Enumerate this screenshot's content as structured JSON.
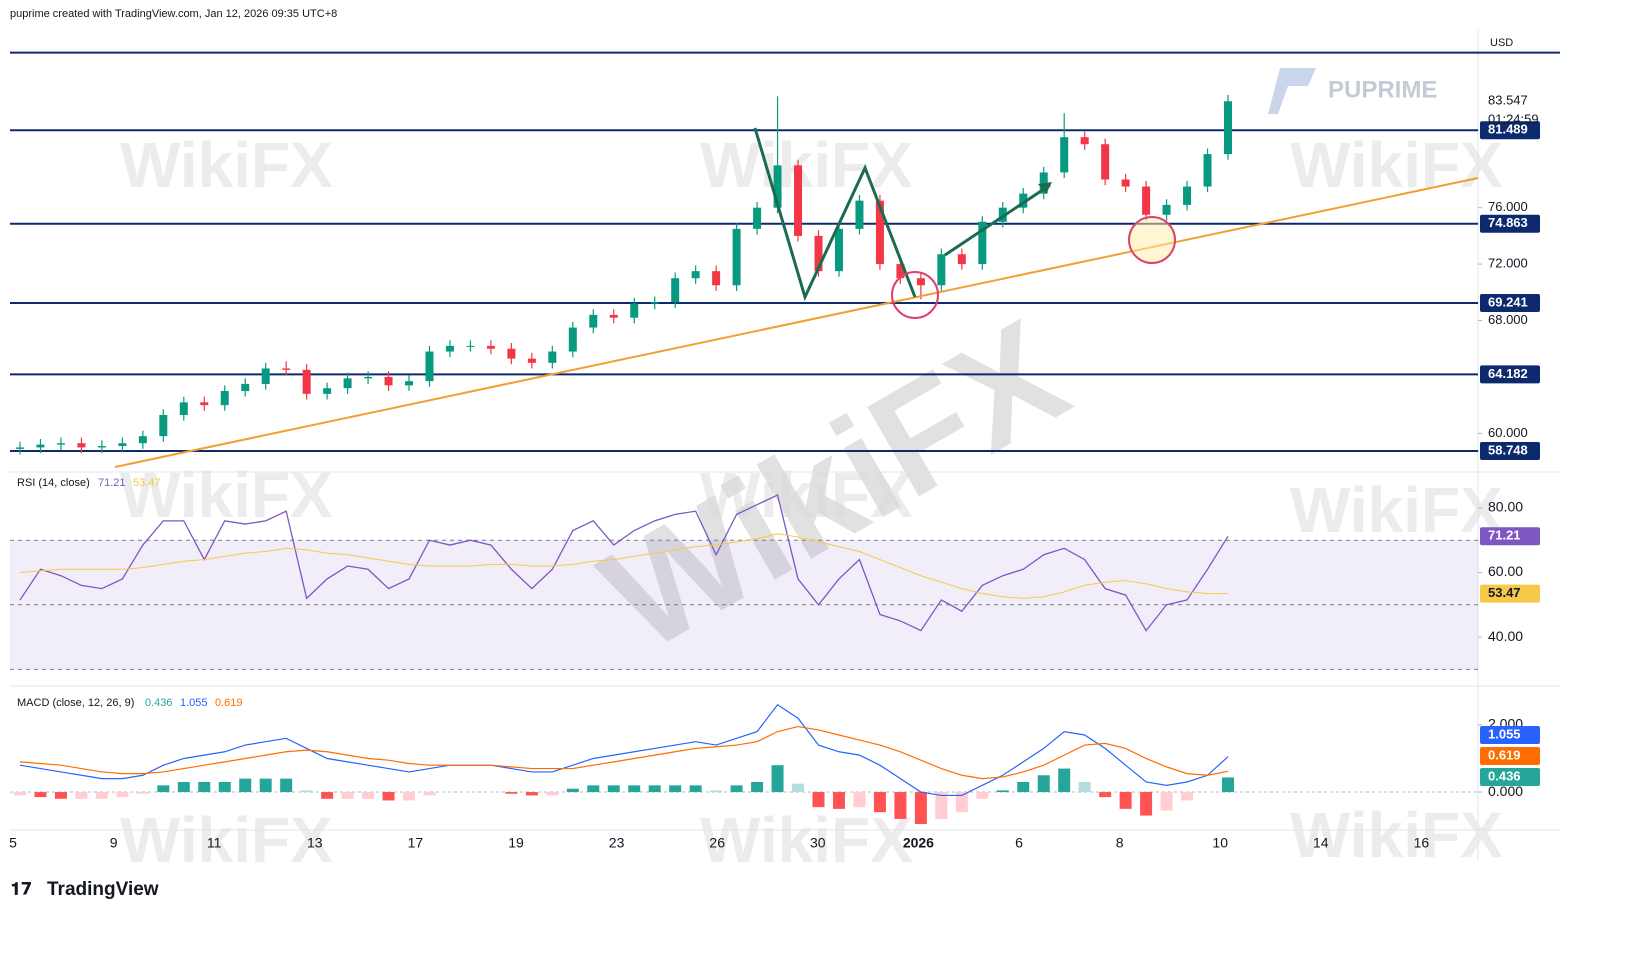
{
  "header": "puprime created with TradingView.com, Jan 12, 2026 09:35 UTC+8",
  "watermark": "WikiFX",
  "brand": "PUPRIME",
  "footer": "TradingView",
  "countdown": "01:24:59",
  "x_axis_labels": [
    "5",
    "9",
    "11",
    "13",
    "17",
    "19",
    "23",
    "26",
    "30",
    "2026",
    "6",
    "8",
    "10",
    "14",
    "16"
  ],
  "chart_data": [
    {
      "type": "candlestick",
      "currency": "USD",
      "up_color": "#089981",
      "down_color": "#f23645",
      "ylim": [
        57.4,
        88.6
      ],
      "yticks": [
        {
          "value": 60,
          "label": "60.000"
        },
        {
          "value": 68,
          "label": "68.000"
        },
        {
          "value": 72,
          "label": "72.000"
        },
        {
          "value": 76,
          "label": "76.000"
        }
      ],
      "levels": [
        81.489,
        74.863,
        69.241,
        64.182,
        58.748
      ],
      "level_color": "#0d2a6e",
      "resistance_line": 87.0,
      "open": [
        58.9,
        59.0,
        59.2,
        59.3,
        59.0,
        59.1,
        59.3,
        59.8,
        61.3,
        62.2,
        62.0,
        63.0,
        63.5,
        64.6,
        64.5,
        62.8,
        63.2,
        63.9,
        64.0,
        63.4,
        63.7,
        65.8,
        66.2,
        66.2,
        66.0,
        65.3,
        65.0,
        65.8,
        67.5,
        68.4,
        68.2,
        69.2,
        69.3,
        71.0,
        71.5,
        70.5,
        74.5,
        76.0,
        79.0,
        74.0,
        71.5,
        74.5,
        76.5,
        72.0,
        71.0,
        70.5,
        72.7,
        72.0,
        75.0,
        76.0,
        77.0,
        78.5,
        81.0,
        80.5,
        78.0,
        77.5,
        75.5,
        76.2,
        77.5,
        79.8
      ],
      "high": [
        59.4,
        59.6,
        59.7,
        59.7,
        59.5,
        59.7,
        60.2,
        61.7,
        62.6,
        62.6,
        63.4,
        63.9,
        65.0,
        65.1,
        64.9,
        63.6,
        64.3,
        64.4,
        64.4,
        64.1,
        66.2,
        66.6,
        66.6,
        66.6,
        66.4,
        65.7,
        66.2,
        67.9,
        68.8,
        68.8,
        69.6,
        69.7,
        71.4,
        71.9,
        71.9,
        74.9,
        76.4,
        83.9,
        79.4,
        74.4,
        74.9,
        76.9,
        76.9,
        72.4,
        71.4,
        73.1,
        73.1,
        75.4,
        76.4,
        77.4,
        78.9,
        82.7,
        81.4,
        80.9,
        78.4,
        77.9,
        76.6,
        77.9,
        80.2,
        84.0
      ],
      "low": [
        58.5,
        58.6,
        58.8,
        58.6,
        58.6,
        58.7,
        58.9,
        59.4,
        60.9,
        61.6,
        61.6,
        62.6,
        63.1,
        64.1,
        62.4,
        62.4,
        62.8,
        63.5,
        63.0,
        63.0,
        63.3,
        65.4,
        65.8,
        65.6,
        64.9,
        64.6,
        64.6,
        65.4,
        67.1,
        67.8,
        67.8,
        68.8,
        68.9,
        70.6,
        70.1,
        70.1,
        74.1,
        75.6,
        73.6,
        71.1,
        71.1,
        74.1,
        71.6,
        70.6,
        69.5,
        70.1,
        71.6,
        71.6,
        74.6,
        75.6,
        76.6,
        78.1,
        80.1,
        77.6,
        77.1,
        75.1,
        75.1,
        75.8,
        77.1,
        79.4
      ],
      "close": [
        59.0,
        59.2,
        59.3,
        59.0,
        59.1,
        59.3,
        59.8,
        61.3,
        62.2,
        62.0,
        63.0,
        63.5,
        64.6,
        64.5,
        62.8,
        63.2,
        63.9,
        64.0,
        63.4,
        63.7,
        65.8,
        66.2,
        66.2,
        66.0,
        65.3,
        65.0,
        65.8,
        67.5,
        68.4,
        68.2,
        69.2,
        69.3,
        71.0,
        71.5,
        70.5,
        74.5,
        76.0,
        79.0,
        74.0,
        71.5,
        74.5,
        76.5,
        72.0,
        71.0,
        70.5,
        72.7,
        72.0,
        75.0,
        76.0,
        77.0,
        78.5,
        81.0,
        80.5,
        78.0,
        77.5,
        75.5,
        76.2,
        77.5,
        79.8,
        83.547
      ]
    },
    {
      "type": "line",
      "title": "RSI (14, close)",
      "ylim": [
        26.7,
        90.2
      ],
      "yticks": [
        {
          "value": 40,
          "label": "40.00"
        },
        {
          "value": 60,
          "label": "60.00"
        },
        {
          "value": 80,
          "label": "80.00"
        }
      ],
      "bands": [
        70,
        50,
        30
      ],
      "band_color": "#7e57c2",
      "series": [
        {
          "color": "#7e57c2",
          "values": [
            51.5,
            61,
            59,
            56,
            55,
            58,
            68.5,
            76,
            76,
            64,
            76,
            75,
            76,
            79,
            52,
            58,
            62,
            61,
            55,
            58,
            70,
            68.5,
            70,
            68.5,
            61,
            55,
            61,
            73,
            76,
            68.5,
            73,
            76,
            78,
            79,
            65.5,
            78,
            81,
            84,
            58,
            50,
            58,
            64,
            47,
            45,
            42,
            51.5,
            48,
            56,
            59,
            61,
            65.5,
            67.5,
            64,
            55,
            53,
            42,
            50,
            51.5,
            61,
            71.21
          ]
        },
        {
          "color": "#f7c948",
          "values": [
            60,
            60.5,
            61,
            61,
            61,
            61,
            61.5,
            62.5,
            63.5,
            64,
            65,
            66,
            66.5,
            67.5,
            67,
            66,
            65.5,
            64.5,
            63.5,
            62.5,
            62,
            62,
            62,
            62.5,
            62.5,
            62,
            62,
            62.5,
            63.5,
            64,
            65,
            66,
            67,
            68,
            68.5,
            69.5,
            70.5,
            72,
            71,
            69.5,
            68,
            66.5,
            64,
            61.5,
            59,
            57,
            55,
            53.5,
            52.5,
            52,
            52.5,
            54,
            56,
            57,
            57.5,
            56.5,
            55,
            54,
            53.5,
            53.47
          ]
        }
      ]
    },
    {
      "type": "macd",
      "title": "MACD (close, 12, 26, 9)",
      "ylim": [
        -1.13,
        3.04
      ],
      "yticks": [
        {
          "value": 0,
          "label": "0.000"
        },
        {
          "value": 2,
          "label": "2.000"
        }
      ],
      "histogram": {
        "colors": [
          "#26a69a",
          "#b2dfdb",
          "#ffcdd2",
          "#ff5252"
        ],
        "values": [
          -0.1,
          -0.15,
          -0.2,
          -0.2,
          -0.2,
          -0.15,
          -0.05,
          0.2,
          0.3,
          0.3,
          0.3,
          0.4,
          0.4,
          0.4,
          0.05,
          -0.2,
          -0.2,
          -0.2,
          -0.25,
          -0.25,
          -0.1,
          0,
          0,
          0,
          -0.05,
          -0.1,
          -0.1,
          0.1,
          0.2,
          0.2,
          0.2,
          0.2,
          0.2,
          0.2,
          0.05,
          0.2,
          0.3,
          0.8,
          0.25,
          -0.45,
          -0.5,
          -0.45,
          -0.6,
          -0.8,
          -0.95,
          -0.8,
          -0.6,
          -0.2,
          0.05,
          0.3,
          0.5,
          0.7,
          0.3,
          -0.15,
          -0.5,
          -0.7,
          -0.55,
          -0.25,
          0,
          0.436
        ]
      },
      "series": [
        {
          "color": "#2962ff",
          "values": [
            0.8,
            0.7,
            0.6,
            0.5,
            0.4,
            0.4,
            0.5,
            0.8,
            1.0,
            1.1,
            1.2,
            1.4,
            1.5,
            1.6,
            1.3,
            1.0,
            0.9,
            0.8,
            0.7,
            0.6,
            0.7,
            0.8,
            0.8,
            0.8,
            0.7,
            0.6,
            0.6,
            0.8,
            1.0,
            1.1,
            1.2,
            1.3,
            1.4,
            1.5,
            1.4,
            1.6,
            1.8,
            2.6,
            2.2,
            1.4,
            1.2,
            1.1,
            0.8,
            0.4,
            0.0,
            -0.1,
            -0.1,
            0.2,
            0.5,
            0.9,
            1.3,
            1.8,
            1.7,
            1.3,
            0.8,
            0.3,
            0.2,
            0.3,
            0.5,
            1.055
          ]
        },
        {
          "color": "#ff6d00",
          "values": [
            0.9,
            0.85,
            0.8,
            0.7,
            0.6,
            0.55,
            0.55,
            0.6,
            0.7,
            0.8,
            0.9,
            1.0,
            1.1,
            1.2,
            1.25,
            1.2,
            1.1,
            1.0,
            0.95,
            0.85,
            0.8,
            0.8,
            0.8,
            0.8,
            0.75,
            0.7,
            0.7,
            0.7,
            0.8,
            0.9,
            1.0,
            1.1,
            1.2,
            1.3,
            1.35,
            1.4,
            1.5,
            1.8,
            1.95,
            1.85,
            1.7,
            1.55,
            1.4,
            1.2,
            0.95,
            0.7,
            0.5,
            0.4,
            0.45,
            0.6,
            0.8,
            1.1,
            1.4,
            1.45,
            1.3,
            1.0,
            0.75,
            0.55,
            0.5,
            0.619
          ]
        }
      ]
    }
  ]
}
